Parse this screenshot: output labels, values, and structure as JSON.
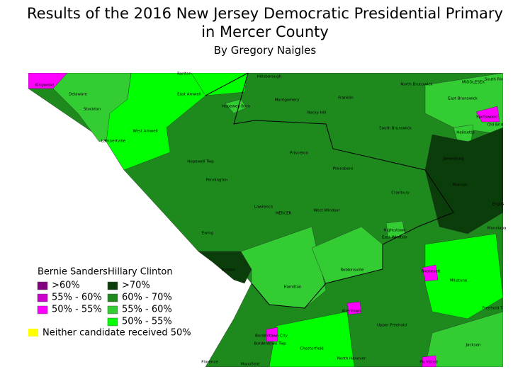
{
  "header": {
    "title": "Results of the 2016 New Jersey Democratic Presidential Primary in Mercer County",
    "subtitle": "By Gregory Naigles"
  },
  "legend": {
    "groups": [
      {
        "title": "Bernie Sanders",
        "items": [
          {
            "label": ">60%",
            "color": "#800080"
          },
          {
            "label": "55% - 60%",
            "color": "#cc00cc"
          },
          {
            "label": "50% - 55%",
            "color": "#ff00ff"
          }
        ]
      },
      {
        "title": "Hillary Clinton",
        "items": [
          {
            "label": ">70%",
            "color": "#0b3d0b"
          },
          {
            "label": "60% - 70%",
            "color": "#1e8a1e"
          },
          {
            "label": "55% - 60%",
            "color": "#33cc33"
          },
          {
            "label": "50% - 55%",
            "color": "#00ff00"
          }
        ]
      }
    ],
    "neither": {
      "label": "Neither candidate received 50%",
      "color": "#ffff00"
    }
  },
  "places": [
    "Kingwood",
    "Raritan",
    "Hillsborough",
    "South Riv",
    "MIDDLESEX",
    "North Brunswick",
    "Delaware",
    "East Amwell",
    "Montgomery",
    "Franklin",
    "East Brunswick",
    "Stockton",
    "Hopewell Boro",
    "Rocky Hill",
    "Spotswood",
    "Old Brid",
    "South Brunswick",
    "West Amwell",
    "Helmetta",
    "Lambertville",
    "Princeton",
    "Hopewell Twp",
    "Jamesburg",
    "Plainsboro",
    "Pennington",
    "Monroe",
    "Cranbury",
    "Lawrence",
    "MERCER",
    "West Windsor",
    "Englis",
    "Manalapa",
    "Ewing",
    "Hightstown",
    "East Windsor",
    "Trenton",
    "Roosevelt",
    "Robbinsville",
    "Millstone",
    "Hamilton",
    "Freehold T",
    "Allentown",
    "Upper Freehold",
    "Bordentown City",
    "Bordentown Twp",
    "Jackson",
    "Chesterfield",
    "North Hanover",
    "Plumsted",
    "Florence",
    "Mansfield"
  ]
}
